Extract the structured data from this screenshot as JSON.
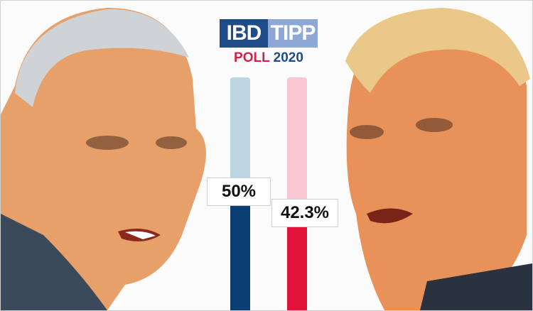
{
  "logo": {
    "part_a": "IBD",
    "part_b": "TIPP",
    "poll_word": "POLL",
    "poll_year": "2020"
  },
  "chart_data": {
    "type": "bar",
    "categories": [
      "",
      ""
    ],
    "values": [
      50,
      42.3
    ],
    "value_labels": [
      "50%",
      "42.3%"
    ],
    "colors": [
      "#0b3f73",
      "#e2143c"
    ],
    "track_colors": [
      "#bcd5e1",
      "#f9c7d3"
    ],
    "ylim": [
      0,
      100
    ]
  },
  "colors": {
    "logo_dark": "#1f4b86",
    "logo_light": "#8ea7d6",
    "poll_red": "#d12249"
  }
}
